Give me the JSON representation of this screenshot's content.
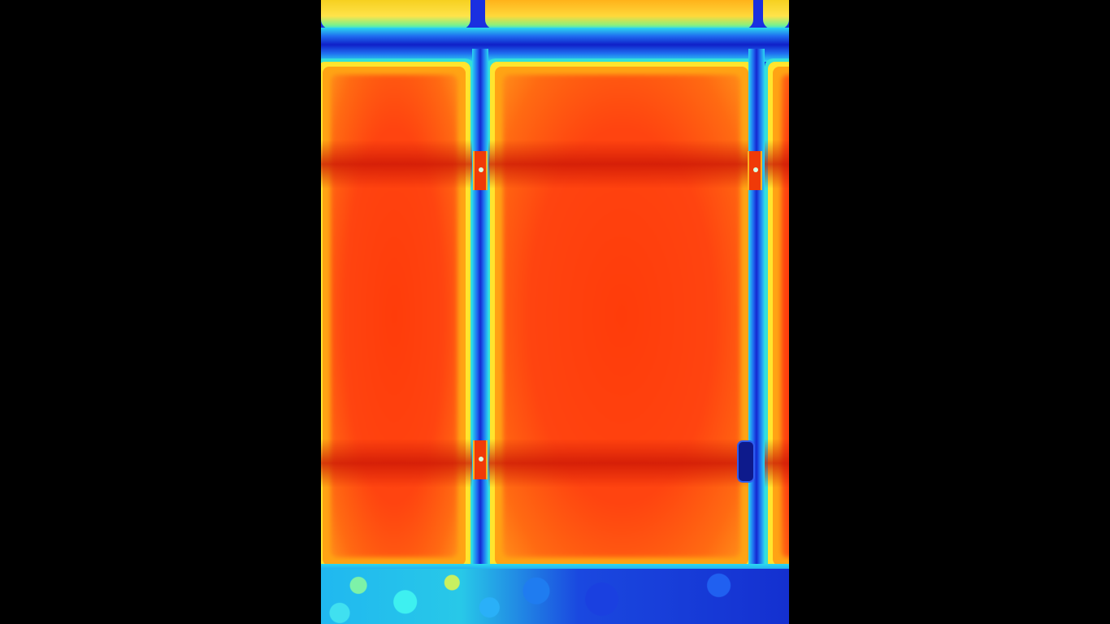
{
  "image": {
    "description_type": "thermal-camera-frame",
    "palette": {
      "letterbox": "#000000",
      "hot": "#ff3c0a",
      "warm": "#ffa414",
      "mid": "#ffe52e",
      "cool": "#35e0d8",
      "cold": "#1526d6"
    }
  }
}
